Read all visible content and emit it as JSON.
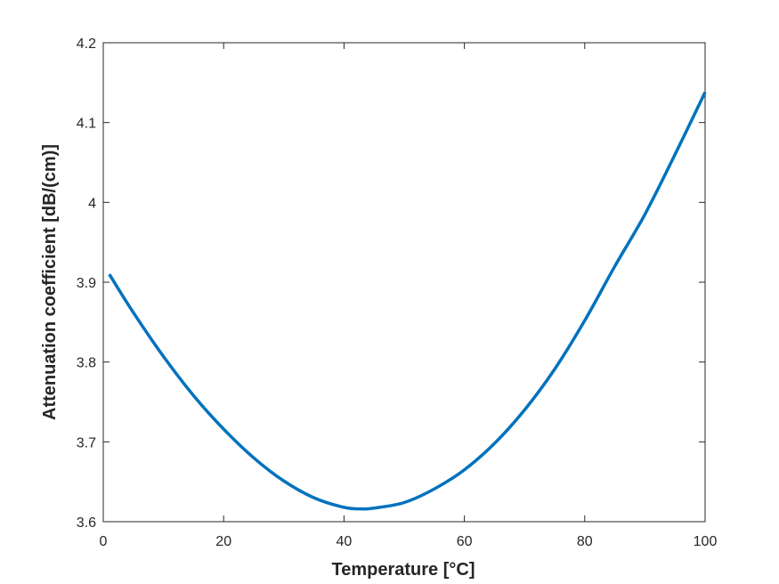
{
  "chart_data": {
    "type": "line",
    "xlabel": "Temperature [°C]",
    "ylabel": "Attenuation coefficient [dB/(cm)]",
    "xlim": [
      0,
      100
    ],
    "ylim": [
      3.6,
      4.2
    ],
    "xticks": [
      0,
      20,
      40,
      60,
      80,
      100
    ],
    "yticks": [
      3.6,
      3.7,
      3.8,
      3.9,
      4.0,
      4.1,
      4.2
    ],
    "xtick_labels": [
      "0",
      "20",
      "40",
      "60",
      "80",
      "100"
    ],
    "ytick_labels": [
      "3.6",
      "3.7",
      "3.8",
      "3.9",
      "4",
      "4.1",
      "4.2"
    ],
    "grid": false,
    "series": [
      {
        "color": "#0072BD",
        "x": [
          1,
          5,
          10,
          15,
          20,
          25,
          30,
          35,
          40,
          43,
          45,
          50,
          55,
          60,
          65,
          70,
          75,
          80,
          85,
          90,
          95,
          100
        ],
        "y": [
          3.91,
          3.862,
          3.807,
          3.758,
          3.716,
          3.68,
          3.651,
          3.63,
          3.618,
          3.616,
          3.617,
          3.624,
          3.641,
          3.665,
          3.698,
          3.74,
          3.791,
          3.852,
          3.92,
          3.985,
          4.06,
          4.138
        ]
      }
    ]
  }
}
